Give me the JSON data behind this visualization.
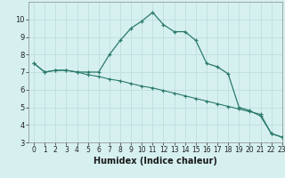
{
  "xlabel": "Humidex (Indice chaleur)",
  "background_color": "#d6f0f0",
  "grid_color": "#c0dede",
  "line_color": "#2a7a6a",
  "line1_x": [
    0,
    1,
    2,
    3,
    4,
    5,
    6,
    7,
    8,
    9,
    10,
    11,
    12,
    13,
    14,
    15,
    16,
    17,
    18,
    19,
    20,
    21,
    22,
    23
  ],
  "line1_y": [
    7.5,
    7.0,
    7.1,
    7.1,
    7.0,
    7.0,
    7.0,
    8.0,
    8.8,
    9.5,
    9.9,
    10.4,
    9.7,
    9.3,
    9.3,
    8.8,
    7.5,
    7.3,
    6.9,
    5.0,
    4.8,
    4.5,
    3.5,
    3.3
  ],
  "line2_x": [
    0,
    1,
    2,
    3,
    4,
    5,
    6,
    7,
    8,
    9,
    10,
    11,
    12,
    13,
    14,
    15,
    16,
    17,
    18,
    19,
    20,
    21,
    22,
    23
  ],
  "line2_y": [
    7.5,
    7.0,
    7.1,
    7.1,
    7.0,
    6.85,
    6.75,
    6.6,
    6.5,
    6.35,
    6.2,
    6.1,
    5.95,
    5.8,
    5.65,
    5.5,
    5.35,
    5.2,
    5.05,
    4.9,
    4.75,
    4.6,
    3.5,
    3.3
  ],
  "ylim": [
    3,
    11
  ],
  "xlim": [
    -0.5,
    23
  ],
  "yticks": [
    3,
    4,
    5,
    6,
    7,
    8,
    9,
    10
  ],
  "xticks": [
    0,
    1,
    2,
    3,
    4,
    5,
    6,
    7,
    8,
    9,
    10,
    11,
    12,
    13,
    14,
    15,
    16,
    17,
    18,
    19,
    20,
    21,
    22,
    23
  ],
  "tick_fontsize": 5.5,
  "xlabel_fontsize": 7.0
}
